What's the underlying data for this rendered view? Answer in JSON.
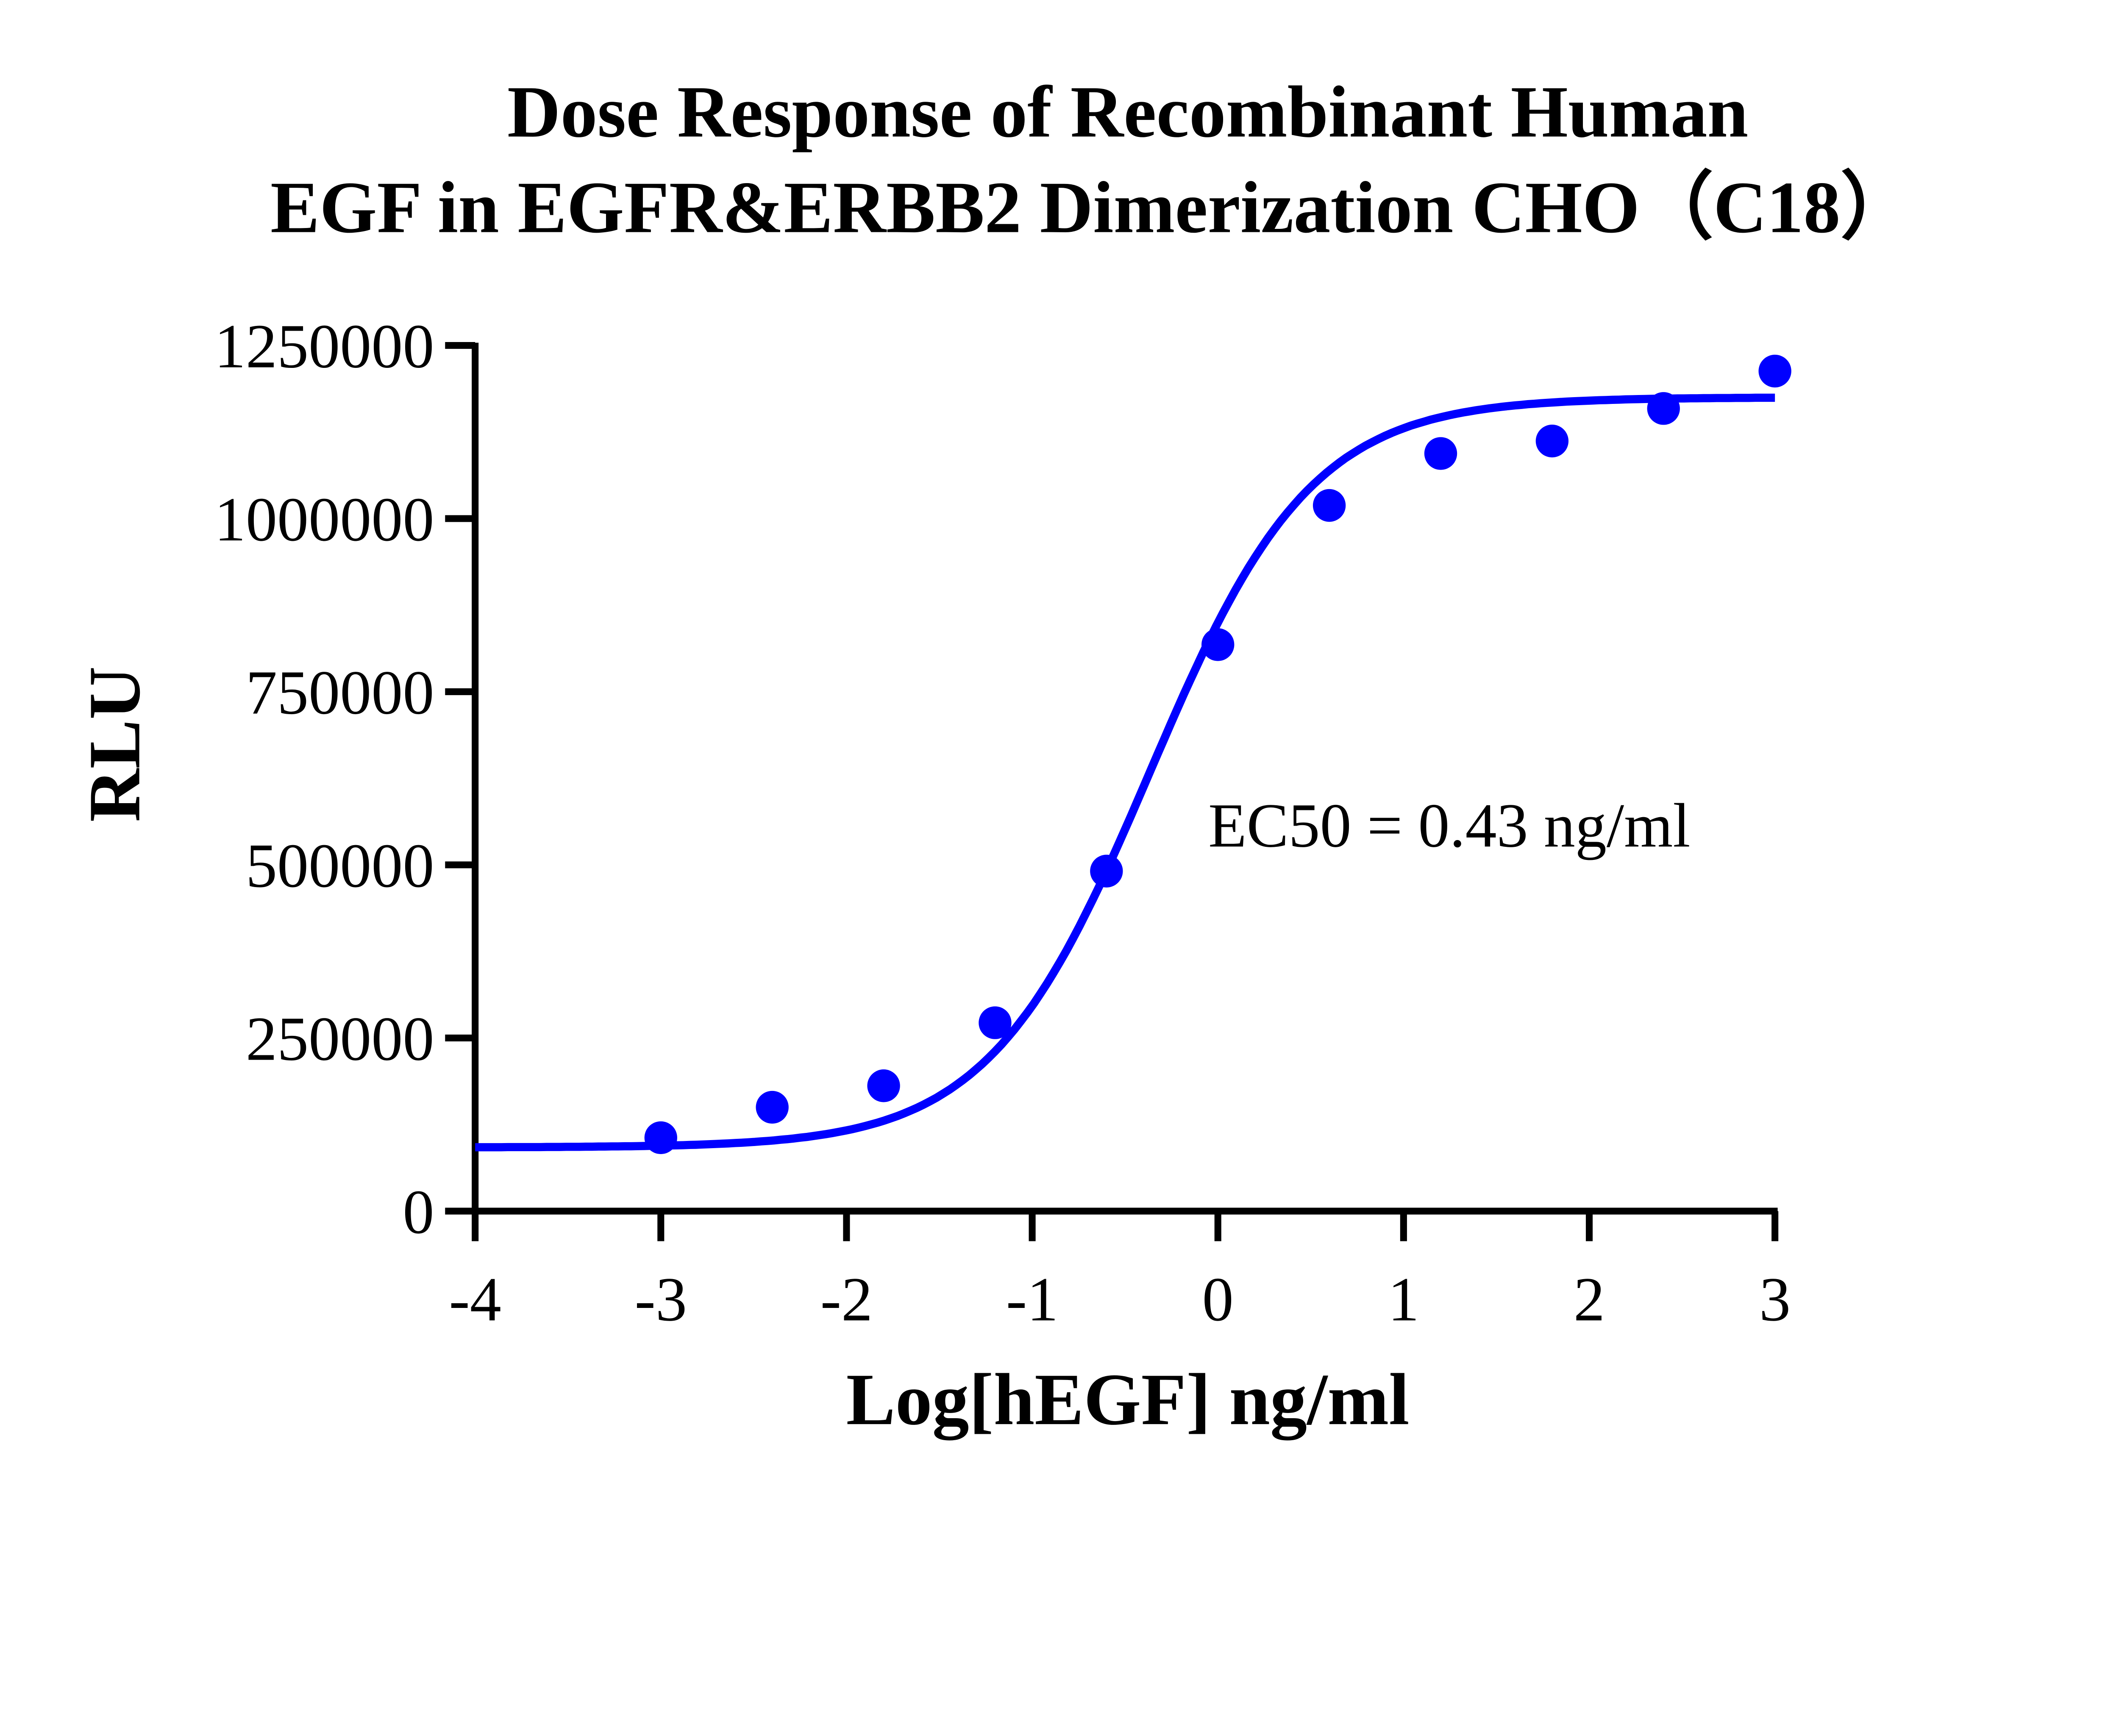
{
  "chart_data": {
    "type": "scatter",
    "title_lines": [
      "Dose Response of Recombinant Human",
      "EGF in EGFR&ERBB2 Dimerization CHO（C18）"
    ],
    "xlabel": "Log[hEGF] ng/ml",
    "ylabel": "RLU",
    "xlim": [
      -4,
      3
    ],
    "ylim": [
      0,
      1250000
    ],
    "xticks": [
      -4,
      -3,
      -2,
      -1,
      0,
      1,
      2,
      3
    ],
    "xtick_labels": [
      "-4",
      "-3",
      "-2",
      "-1",
      "0",
      "1",
      "2",
      "3"
    ],
    "yticks": [
      0,
      250000,
      500000,
      750000,
      1000000,
      1250000
    ],
    "ytick_labels": [
      "0",
      "250000",
      "500000",
      "750000",
      "1000000",
      "1250000"
    ],
    "grid": false,
    "color": "#0000FF",
    "points": {
      "x": [
        -3,
        -2.4,
        -1.8,
        -1.2,
        -0.6,
        0,
        0.6,
        1.2,
        1.8,
        2.4,
        3
      ],
      "y": [
        106000,
        150000,
        181000,
        272000,
        491000,
        818000,
        1019000,
        1094000,
        1112000,
        1159000,
        1213000
      ]
    },
    "fit_curve": {
      "model": "4PL",
      "bottom": 92000,
      "top": 1175000,
      "log_ec50": -0.367,
      "hill": 1.0,
      "x_range": [
        -4,
        3
      ]
    },
    "annotation": "EC50 = 0.43 ng/ml"
  }
}
